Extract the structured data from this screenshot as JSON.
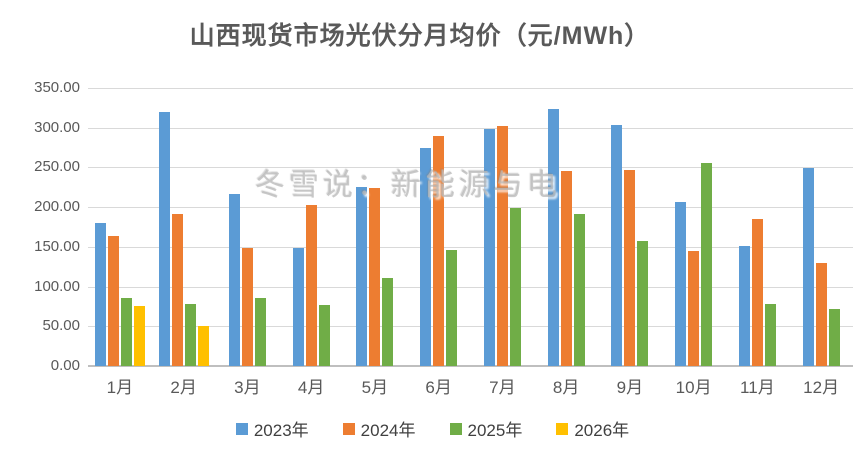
{
  "watermark": "冬雪说：新能源与电",
  "chart_data": {
    "type": "bar",
    "title": "山西现货市场光伏分月均价（元/MWh）",
    "categories": [
      "1月",
      "2月",
      "3月",
      "4月",
      "5月",
      "6月",
      "7月",
      "8月",
      "9月",
      "10月",
      "11月",
      "12月"
    ],
    "series": [
      {
        "name": "2023年",
        "color": "#5B9BD5",
        "values": [
          180,
          320,
          216,
          149,
          225,
          275,
          299,
          324,
          303,
          206,
          151,
          249
        ]
      },
      {
        "name": "2024年",
        "color": "#ED7D31",
        "values": [
          164,
          192,
          149,
          203,
          224,
          289,
          302,
          245,
          247,
          145,
          185,
          130
        ]
      },
      {
        "name": "2025年",
        "color": "#70AD47",
        "values": [
          86,
          78,
          86,
          77,
          111,
          146,
          199,
          192,
          158,
          255,
          78,
          72
        ]
      },
      {
        "name": "2026年",
        "color": "#FFC000",
        "values": [
          76,
          50,
          null,
          null,
          null,
          null,
          null,
          null,
          null,
          null,
          null,
          null
        ]
      }
    ],
    "ylabel": "",
    "xlabel": "",
    "ylim": [
      0,
      350
    ],
    "ytick_step": 50,
    "ytick_labels": [
      "0.00",
      "50.00",
      "100.00",
      "150.00",
      "200.00",
      "250.00",
      "300.00",
      "350.00"
    ],
    "grid": true,
    "legend_position": "bottom"
  }
}
